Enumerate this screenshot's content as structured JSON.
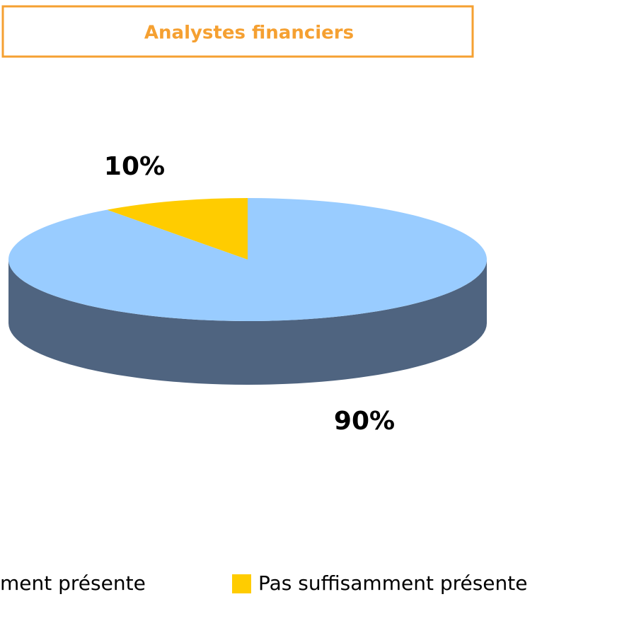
{
  "chart_data": {
    "type": "pie",
    "title": "Analystes financiers",
    "categories": [
      "ment présente",
      "Pas suffisamment présente"
    ],
    "values": [
      90,
      10
    ],
    "value_labels": [
      "90%",
      "10%"
    ],
    "colors": [
      "#99ccff",
      "#ffcc00"
    ],
    "side_colors": [
      "#4f6480",
      "#b08f00"
    ]
  }
}
